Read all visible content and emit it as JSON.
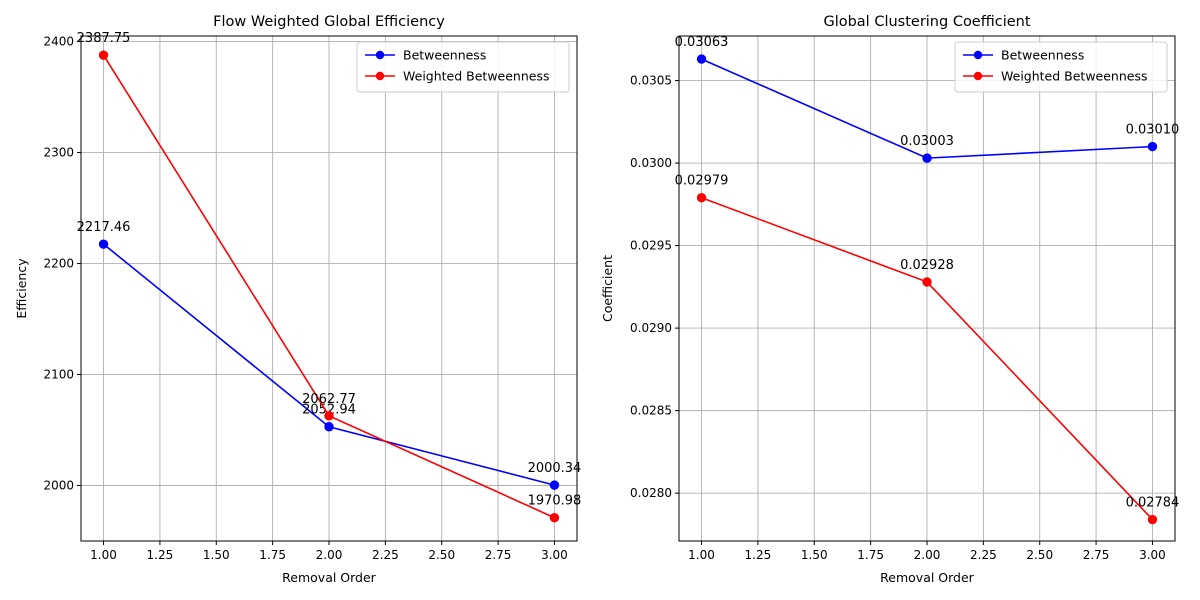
{
  "figure": {
    "background": "#ffffff"
  },
  "chart_data": [
    {
      "type": "line",
      "title": "Flow Weighted Global Efficiency",
      "xlabel": "Removal Order",
      "ylabel": "Efficiency",
      "x": [
        1,
        2,
        3
      ],
      "xlim": [
        0.9,
        3.1
      ],
      "ylim": [
        1950,
        2405
      ],
      "xticks": [
        1.0,
        1.25,
        1.5,
        1.75,
        2.0,
        2.25,
        2.5,
        2.75,
        3.0
      ],
      "xtick_labels": [
        "1.00",
        "1.25",
        "1.50",
        "1.75",
        "2.00",
        "2.25",
        "2.50",
        "2.75",
        "3.00"
      ],
      "yticks": [
        2000,
        2100,
        2200,
        2300,
        2400
      ],
      "ytick_labels": [
        "2000",
        "2100",
        "2200",
        "2300",
        "2400"
      ],
      "grid": true,
      "legend_position": "top-right",
      "series": [
        {
          "name": "Betweenness",
          "color": "#0000ff",
          "marker": "circle",
          "values": [
            2217.46,
            2052.94,
            2000.34
          ],
          "labels": [
            "2217.46",
            "2052.94",
            "2000.34"
          ]
        },
        {
          "name": "Weighted Betweenness",
          "color": "#ff0000",
          "marker": "circle",
          "values": [
            2387.75,
            2062.77,
            1970.98
          ],
          "labels": [
            "2387.75",
            "2062.77",
            "1970.98"
          ]
        }
      ]
    },
    {
      "type": "line",
      "title": "Global Clustering Coefficient",
      "xlabel": "Removal Order",
      "ylabel": "Coefficient",
      "x": [
        1,
        2,
        3
      ],
      "xlim": [
        0.9,
        3.1
      ],
      "ylim": [
        0.02771,
        0.03077
      ],
      "xticks": [
        1.0,
        1.25,
        1.5,
        1.75,
        2.0,
        2.25,
        2.5,
        2.75,
        3.0
      ],
      "xtick_labels": [
        "1.00",
        "1.25",
        "1.50",
        "1.75",
        "2.00",
        "2.25",
        "2.50",
        "2.75",
        "3.00"
      ],
      "yticks": [
        0.028,
        0.0285,
        0.029,
        0.0295,
        0.03,
        0.0305
      ],
      "ytick_labels": [
        "0.0280",
        "0.0285",
        "0.0290",
        "0.0295",
        "0.0300",
        "0.0305"
      ],
      "grid": true,
      "legend_position": "top-right",
      "series": [
        {
          "name": "Betweenness",
          "color": "#0000ff",
          "marker": "circle",
          "values": [
            0.03063,
            0.03003,
            0.0301
          ],
          "labels": [
            "0.03063",
            "0.03003",
            "0.03010"
          ]
        },
        {
          "name": "Weighted Betweenness",
          "color": "#ff0000",
          "marker": "circle",
          "values": [
            0.02979,
            0.02928,
            0.02784
          ],
          "labels": [
            "0.02979",
            "0.02928",
            "0.02784"
          ]
        }
      ]
    }
  ]
}
